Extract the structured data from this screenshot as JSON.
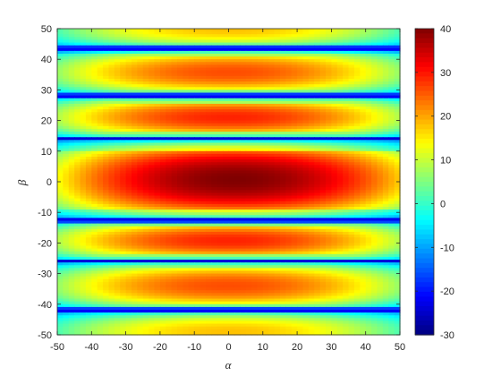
{
  "chart_data": {
    "type": "heatmap",
    "title": "",
    "xlabel": "α",
    "ylabel": "β",
    "xlim": [
      -50,
      50
    ],
    "ylim": [
      -50,
      50
    ],
    "x_ticks": [
      -50,
      -40,
      -30,
      -20,
      -10,
      0,
      10,
      20,
      30,
      40,
      50
    ],
    "y_ticks": [
      -50,
      -40,
      -30,
      -20,
      -10,
      0,
      10,
      20,
      30,
      40,
      50
    ],
    "colorbar": {
      "colormap": "jet",
      "clim": [
        -30,
        40
      ],
      "ticks": [
        -30,
        -20,
        -10,
        0,
        10,
        20,
        30,
        40
      ]
    },
    "field": {
      "description_values": "lobe pattern in beta; peak value along each band, decreasing from center",
      "lobes": [
        {
          "beta_center": 0,
          "peak": 40,
          "alpha_center": 2
        },
        {
          "beta_center": 20,
          "peak": 29
        },
        {
          "beta_center": -19,
          "peak": 29
        },
        {
          "beta_center": 36,
          "peak": 26
        },
        {
          "beta_center": -34,
          "peak": 26
        },
        {
          "beta_center": 47,
          "peak": 18
        },
        {
          "beta_center": -47,
          "peak": 18
        }
      ],
      "nulls_beta": [
        43.5,
        28,
        14,
        -12.5,
        -26,
        -42
      ],
      "null_min": -25
    },
    "grid": false
  }
}
